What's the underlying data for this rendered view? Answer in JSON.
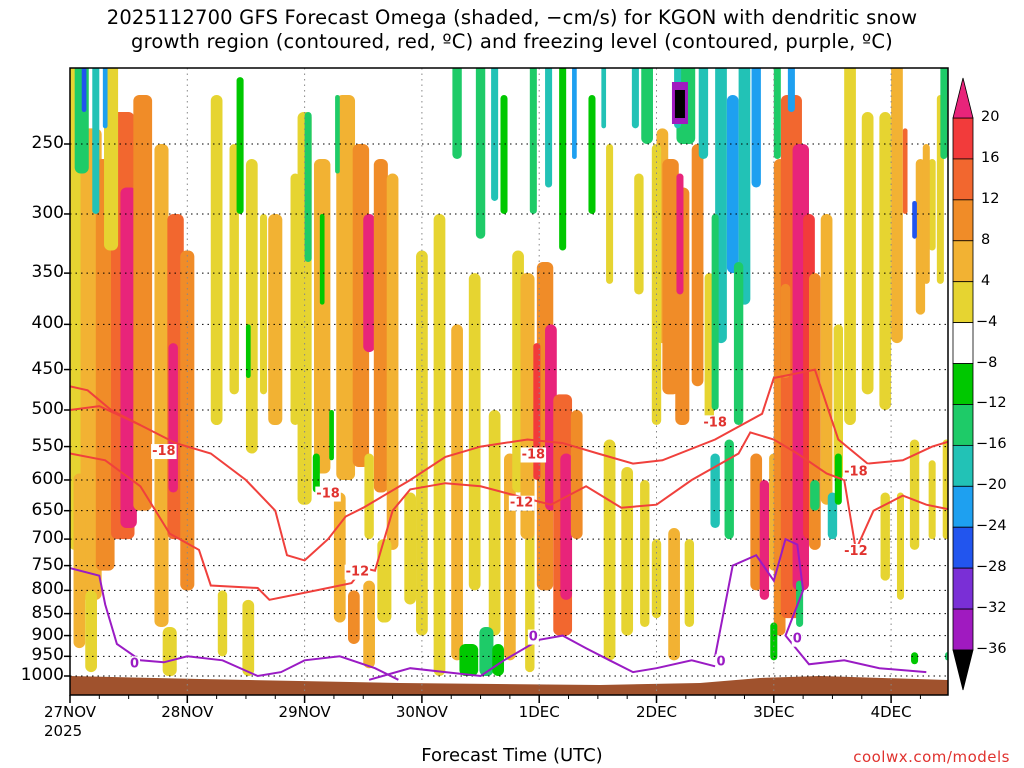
{
  "title": {
    "line1": "2025112700 GFS Forecast Omega (shaded, −cm/s) for KGON with dendritic snow",
    "line2": "growth region (contoured, red, ºC) and freezing level (contoured, purple, ºC)"
  },
  "credit": "coolwx.com/models",
  "chart_data": {
    "type": "heatmap",
    "title": "2025112700 GFS Forecast Omega (shaded, −cm/s) for KGON with dendritic snow growth region (contoured, red, ºC) and freezing level (contoured, purple, ºC)",
    "xlabel": "Forecast Time (UTC)",
    "ylabel": "",
    "x_ticks": [
      "27NOV",
      "28NOV",
      "29NOV",
      "30NOV",
      "1DEC",
      "2DEC",
      "3DEC",
      "4DEC"
    ],
    "x_year": "2025",
    "y_ticks": [
      250,
      300,
      350,
      400,
      450,
      500,
      550,
      600,
      650,
      700,
      750,
      800,
      850,
      900,
      950,
      1000
    ],
    "y_axis": "pressure (hPa), log scale, inverted",
    "ylim": [
      1015,
      200
    ],
    "colorbar": {
      "labels": [
        "20",
        "16",
        "12",
        "8",
        "4",
        "−4",
        "−8",
        "−12",
        "−16",
        "−20",
        "−24",
        "−28",
        "−32",
        "−36"
      ],
      "colors": [
        "#e8247a",
        "#f23b3b",
        "#f2672f",
        "#f08c28",
        "#f2b233",
        "#e6d431",
        "#ffffff",
        "#00c800",
        "#1ecb68",
        "#22c2b6",
        "#1ea0f0",
        "#2255ee",
        "#7a2fd6",
        "#a01ac0",
        "#a0a0a0",
        "#000000"
      ]
    },
    "contours": {
      "dendritic_red": [
        {
          "label": "-18",
          "day": 0.8,
          "p": 555
        },
        {
          "label": "-18",
          "day": 2.2,
          "p": 620
        },
        {
          "label": "-12",
          "day": 2.45,
          "p": 760
        },
        {
          "label": "-18",
          "day": 3.95,
          "p": 560
        },
        {
          "label": "-12",
          "day": 3.85,
          "p": 635
        },
        {
          "label": "-18",
          "day": 5.5,
          "p": 515
        },
        {
          "label": "-18",
          "day": 6.7,
          "p": 585
        },
        {
          "label": "-12",
          "day": 6.7,
          "p": 720
        }
      ],
      "freezing_purple": [
        {
          "label": "0",
          "day": 0.55,
          "p": 965
        },
        {
          "label": "0",
          "day": 3.95,
          "p": 900
        },
        {
          "label": "0",
          "day": 5.55,
          "p": 960
        },
        {
          "label": "0",
          "day": 6.2,
          "p": 905
        }
      ]
    }
  }
}
